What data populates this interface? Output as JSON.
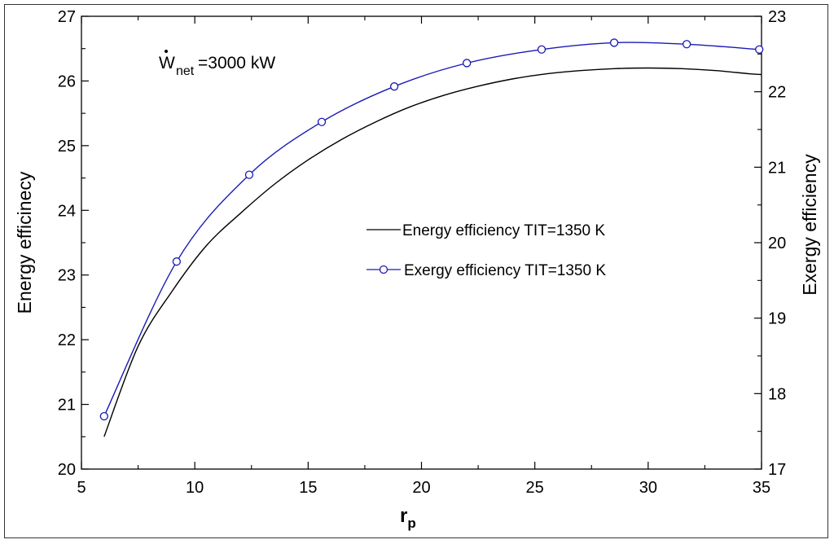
{
  "chart_data": {
    "type": "line",
    "xlabel": "r",
    "xlabel_sub": "p",
    "ylabel_left": "Energy efficinecy",
    "ylabel_right": "Exergy efficiency",
    "xlim": [
      5,
      35
    ],
    "ylim_left": [
      20,
      27
    ],
    "ylim_right": [
      17,
      23
    ],
    "x_ticks": [
      "5",
      "10",
      "15",
      "20",
      "25",
      "30",
      "35"
    ],
    "y_left_ticks": [
      "20",
      "21",
      "22",
      "23",
      "24",
      "25",
      "26",
      "27"
    ],
    "y_right_ticks": [
      "17",
      "18",
      "19",
      "20",
      "21",
      "22",
      "23"
    ],
    "annotation": {
      "symbol": "W",
      "sub": "net",
      "text": "=3000 kW"
    },
    "series": [
      {
        "name": "Energy efficiency TIT=1350 K",
        "axis": "left",
        "color": "#000000",
        "marker": "none",
        "x": [
          6.0,
          7.5,
          9.0,
          10.5,
          12.0,
          13.5,
          15.0,
          16.5,
          18.0,
          19.5,
          21.0,
          22.5,
          24.0,
          25.5,
          27.0,
          28.5,
          30.0,
          31.5,
          33.0,
          34.5,
          35.0
        ],
        "y": [
          20.5,
          21.9,
          22.75,
          23.45,
          23.95,
          24.4,
          24.78,
          25.1,
          25.37,
          25.6,
          25.78,
          25.92,
          26.03,
          26.11,
          26.16,
          26.19,
          26.2,
          26.19,
          26.16,
          26.11,
          26.1
        ]
      },
      {
        "name": "Exergy efficiency TIT=1350 K",
        "axis": "right",
        "color": "#1a1ab5",
        "marker": "circle",
        "x": [
          6.0,
          9.2,
          12.4,
          15.6,
          18.8,
          22.0,
          25.3,
          28.5,
          31.7,
          34.9
        ],
        "y": [
          17.7,
          19.75,
          20.9,
          21.6,
          22.07,
          22.38,
          22.56,
          22.65,
          22.63,
          22.56
        ]
      }
    ]
  }
}
